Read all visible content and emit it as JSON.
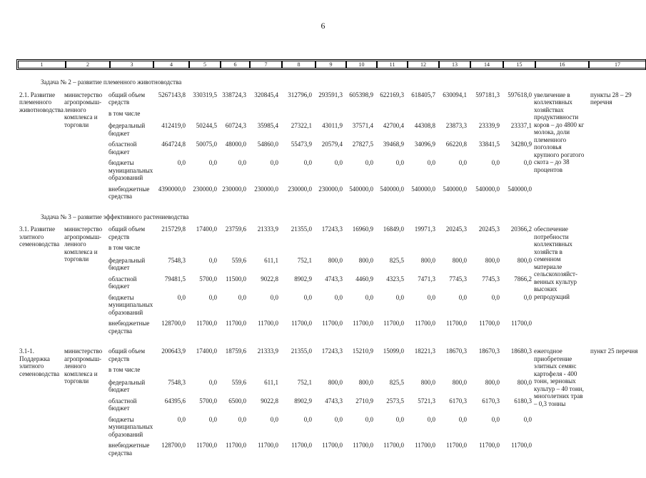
{
  "page": {
    "number": "6"
  },
  "grid_header": [
    "1",
    "2",
    "3",
    "4",
    "5",
    "6",
    "7",
    "8",
    "9",
    "10",
    "11",
    "12",
    "13",
    "14",
    "15",
    "16",
    "17"
  ],
  "sections": [
    {
      "task_title": "Задача № 2 – развитие племенного животноводства",
      "blocks": [
        {
          "id_title": "2.1. Развитие племенного животноводства",
          "executor": "министерство агропромыш-ленного комплекса и торговли",
          "rows": [
            {
              "label": "общий объем средств",
              "values": [
                "5267143,8",
                "330319,5",
                "338724,3",
                "320845,4",
                "312796,0",
                "293591,3",
                "605398,9",
                "622169,3",
                "618405,7",
                "630094,1",
                "597181,3",
                "597618,0"
              ]
            },
            {
              "label": "в том числе",
              "values": []
            },
            {
              "label": "федеральный бюджет",
              "values": [
                "412419,0",
                "50244,5",
                "60724,3",
                "35985,4",
                "27322,1",
                "43011,9",
                "37571,4",
                "42700,4",
                "44308,8",
                "23873,3",
                "23339,9",
                "23337,1"
              ]
            },
            {
              "label": "областной бюджет",
              "values": [
                "464724,8",
                "50075,0",
                "48000,0",
                "54860,0",
                "55473,9",
                "20579,4",
                "27827,5",
                "39468,9",
                "34096,9",
                "66220,8",
                "33841,5",
                "34280,9"
              ]
            },
            {
              "label": "бюджеты муниципальных образований",
              "values": [
                "0,0",
                "0,0",
                "0,0",
                "0,0",
                "0,0",
                "0,0",
                "0,0",
                "0,0",
                "0,0",
                "0,0",
                "0,0",
                "0,0"
              ]
            },
            {
              "label": "внебюджетные средства",
              "values": [
                "4390000,0",
                "230000,0",
                "230000,0",
                "230000,0",
                "230000,0",
                "230000,0",
                "540000,0",
                "540000,0",
                "540000,0",
                "540000,0",
                "540000,0",
                "540000,0"
              ]
            }
          ],
          "expected_result": "увеличение в коллективных хозяйствах продуктивности коров – до 4800 кг молока, доли племенного поголовья крупного рогатого скота – до 38 процентов",
          "reference": "пункты 28 – 29 перечня"
        }
      ]
    },
    {
      "task_title": "Задача № 3 – развитие эффективного растениеводства",
      "blocks": [
        {
          "id_title": "3.1. Развитие элитного семеноводства",
          "executor": "министерство агропромыш-ленного комплекса и торговли",
          "rows": [
            {
              "label": "общий объем средств",
              "values": [
                "215729,8",
                "17400,0",
                "23759,6",
                "21333,9",
                "21355,0",
                "17243,3",
                "16960,9",
                "16849,0",
                "19971,3",
                "20245,3",
                "20245,3",
                "20366,2"
              ]
            },
            {
              "label": "в том числе",
              "values": []
            },
            {
              "label": "федеральный бюджет",
              "values": [
                "7548,3",
                "0,0",
                "559,6",
                "611,1",
                "752,1",
                "800,0",
                "800,0",
                "825,5",
                "800,0",
                "800,0",
                "800,0",
                "800,0"
              ]
            },
            {
              "label": "областной бюджет",
              "values": [
                "79481,5",
                "5700,0",
                "11500,0",
                "9022,8",
                "8902,9",
                "4743,3",
                "4460,9",
                "4323,5",
                "7471,3",
                "7745,3",
                "7745,3",
                "7866,2"
              ]
            },
            {
              "label": "бюджеты муниципальных образований",
              "values": [
                "0,0",
                "0,0",
                "0,0",
                "0,0",
                "0,0",
                "0,0",
                "0,0",
                "0,0",
                "0,0",
                "0,0",
                "0,0",
                "0,0"
              ]
            },
            {
              "label": "внебюджетные средства",
              "values": [
                "128700,0",
                "11700,0",
                "11700,0",
                "11700,0",
                "11700,0",
                "11700,0",
                "11700,0",
                "11700,0",
                "11700,0",
                "11700,0",
                "11700,0",
                "11700,0"
              ]
            }
          ],
          "expected_result": "обеспечение потребности коллективных хозяйств в семенном материале сельскохозяйст-венных культур высоких репродукций",
          "reference": ""
        },
        {
          "id_title": "3.1-1. Поддержка элитного семеноводства",
          "executor": "министерство агропромыш-ленного комплекса и торговли",
          "rows": [
            {
              "label": "общий объем средств",
              "values": [
                "200643,9",
                "17400,0",
                "18759,6",
                "21333,9",
                "21355,0",
                "17243,3",
                "15210,9",
                "15099,0",
                "18221,3",
                "18670,3",
                "18670,3",
                "18680,3"
              ]
            },
            {
              "label": "в том числе",
              "values": []
            },
            {
              "label": "федеральный бюджет",
              "values": [
                "7548,3",
                "0,0",
                "559,6",
                "611,1",
                "752,1",
                "800,0",
                "800,0",
                "825,5",
                "800,0",
                "800,0",
                "800,0",
                "800,0"
              ]
            },
            {
              "label": "областной бюджет",
              "values": [
                "64395,6",
                "5700,0",
                "6500,0",
                "9022,8",
                "8902,9",
                "4743,3",
                "2710,9",
                "2573,5",
                "5721,3",
                "6170,3",
                "6170,3",
                "6180,3"
              ]
            },
            {
              "label": "бюджеты муниципальных образований",
              "values": [
                "0,0",
                "0,0",
                "0,0",
                "0,0",
                "0,0",
                "0,0",
                "0,0",
                "0,0",
                "0,0",
                "0,0",
                "0,0",
                "0,0"
              ]
            },
            {
              "label": "внебюджетные средства",
              "values": [
                "128700,0",
                "11700,0",
                "11700,0",
                "11700,0",
                "11700,0",
                "11700,0",
                "11700,0",
                "11700,0",
                "11700,0",
                "11700,0",
                "11700,0",
                "11700,0"
              ]
            }
          ],
          "expected_result": "ежегодное приобретение элитных семян: картофеля - 400 тонн, зерновых культур – 40 тонн, многолетних трав – 0,3 тонны",
          "reference": "пункт 25 перечня"
        }
      ]
    }
  ]
}
